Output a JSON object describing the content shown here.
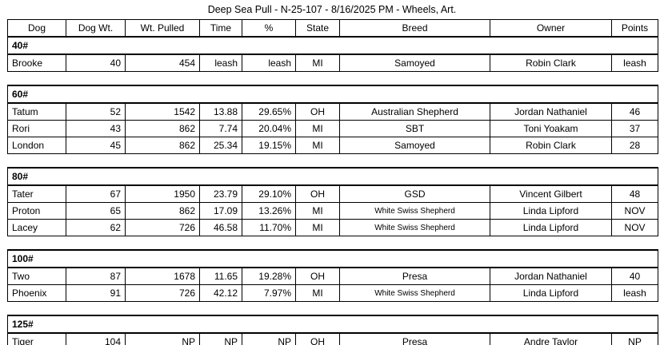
{
  "title": "Deep Sea Pull - N-25-107 - 8/16/2025 PM - Wheels, Art.",
  "columns": [
    "Dog",
    "Dog Wt.",
    "Wt. Pulled",
    "Time",
    "%",
    "State",
    "Breed",
    "Owner",
    "Points"
  ],
  "sections": [
    {
      "label": "40#",
      "rows": [
        {
          "dog": "Brooke",
          "dog_wt": "40",
          "wt_pulled": "454",
          "time": "leash",
          "pct": "leash",
          "state": "MI",
          "breed": "Samoyed",
          "owner": "Robin Clark",
          "points": "leash"
        }
      ]
    },
    {
      "label": "60#",
      "rows": [
        {
          "dog": "Tatum",
          "dog_wt": "52",
          "wt_pulled": "1542",
          "time": "13.88",
          "pct": "29.65%",
          "state": "OH",
          "breed": "Australian Shepherd",
          "owner": "Jordan Nathaniel",
          "points": "46"
        },
        {
          "dog": "Rori",
          "dog_wt": "43",
          "wt_pulled": "862",
          "time": "7.74",
          "pct": "20.04%",
          "state": "MI",
          "breed": "SBT",
          "owner": "Toni Yoakam",
          "points": "37"
        },
        {
          "dog": "London",
          "dog_wt": "45",
          "wt_pulled": "862",
          "time": "25.34",
          "pct": "19.15%",
          "state": "MI",
          "breed": "Samoyed",
          "owner": "Robin Clark",
          "points": "28"
        }
      ]
    },
    {
      "label": "80#",
      "rows": [
        {
          "dog": "Tater",
          "dog_wt": "67",
          "wt_pulled": "1950",
          "time": "23.79",
          "pct": "29.10%",
          "state": "OH",
          "breed": "GSD",
          "owner": "Vincent Gilbert",
          "points": "48"
        },
        {
          "dog": "Proton",
          "dog_wt": "65",
          "wt_pulled": "862",
          "time": "17.09",
          "pct": "13.26%",
          "state": "MI",
          "breed": "White Swiss Shepherd",
          "owner": "Linda Lipford",
          "points": "NOV"
        },
        {
          "dog": "Lacey",
          "dog_wt": "62",
          "wt_pulled": "726",
          "time": "46.58",
          "pct": "11.70%",
          "state": "MI",
          "breed": "White Swiss Shepherd",
          "owner": "Linda Lipford",
          "points": "NOV"
        }
      ]
    },
    {
      "label": "100#",
      "rows": [
        {
          "dog": "Two",
          "dog_wt": "87",
          "wt_pulled": "1678",
          "time": "11.65",
          "pct": "19.28%",
          "state": "OH",
          "breed": "Presa",
          "owner": "Jordan Nathaniel",
          "points": "40"
        },
        {
          "dog": "Phoenix",
          "dog_wt": "91",
          "wt_pulled": "726",
          "time": "42.12",
          "pct": "7.97%",
          "state": "MI",
          "breed": "White Swiss Shepherd",
          "owner": "Linda Lipford",
          "points": "leash"
        }
      ]
    },
    {
      "label": "125#",
      "rows": [
        {
          "dog": "Tiger",
          "dog_wt": "104",
          "wt_pulled": "NP",
          "time": "NP",
          "pct": "NP",
          "state": "OH",
          "breed": "Presa",
          "owner": "Andre Taylor",
          "points": "NP"
        }
      ]
    }
  ]
}
